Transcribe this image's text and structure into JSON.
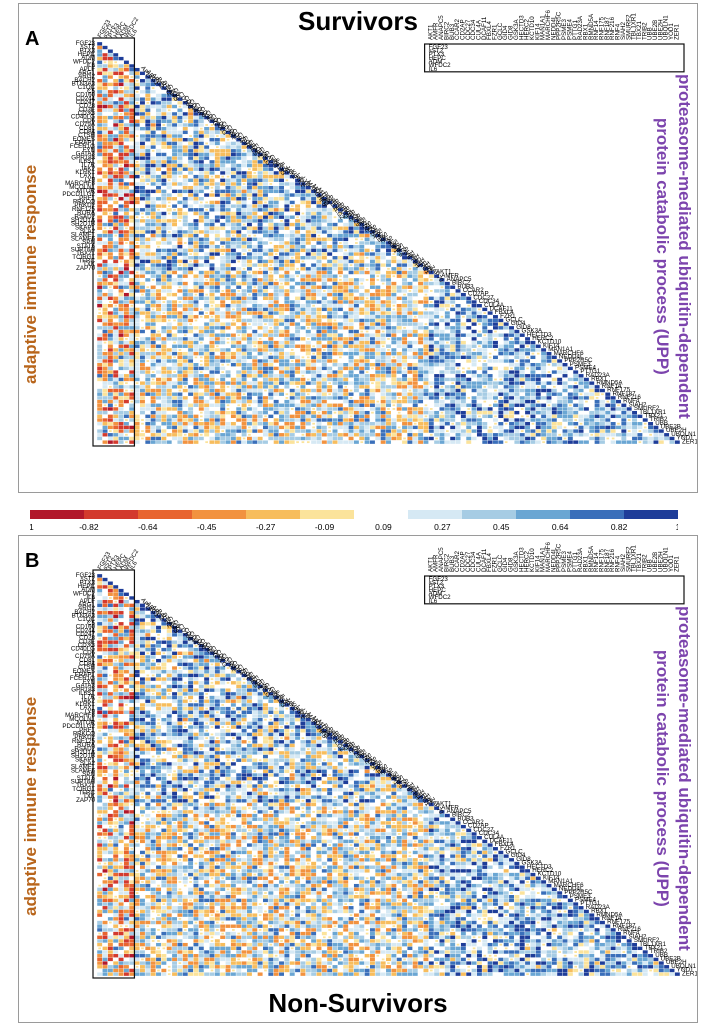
{
  "chart_data": {
    "type": "heatmap",
    "shape": "lower-triangular correlation matrix",
    "colorscale": {
      "min": -1,
      "max": 1,
      "ticks": [
        "-1",
        "-0.82",
        "-0.64",
        "-0.45",
        "-0.27",
        "-0.09",
        "0.09",
        "0.27",
        "0.45",
        "0.64",
        "0.82",
        "1"
      ],
      "colors": [
        "#b2182b",
        "#d33a2e",
        "#e8642f",
        "#f2923f",
        "#f7bd5d",
        "#fbe39b",
        "#ffffff",
        "#d6e9f4",
        "#a6cce4",
        "#6aa6d3",
        "#3a6fba",
        "#1e3d99"
      ]
    },
    "genes": {
      "hormone": [
        "FGF23",
        "sST2",
        "PTX3",
        "HEPC",
        "ADM",
        "WFDC2",
        "IL6"
      ],
      "adaptive_immune_response": [
        "APLF",
        "ARG1",
        "ARG2",
        "BACH2",
        "BTN3A3",
        "C1QC",
        "C5",
        "CD160",
        "CD244",
        "CD247",
        "CD28",
        "CD3E",
        "CD3G",
        "CD40LG",
        "CD6",
        "CD79A",
        "CD81",
        "CD84",
        "CTSH",
        "EOMES",
        "ERAP1",
        "FCER1G",
        "FYN",
        "GATA3",
        "GPR183",
        "IL6ST",
        "IL7R",
        "JAK2",
        "KLRK1",
        "LAX1",
        "LY9",
        "MARCHF8",
        "MCOLN1",
        "MTOR",
        "PDCD1LG2",
        "PRF1",
        "PRKCQ",
        "PRKD2",
        "RNF125",
        "RORA",
        "RSAD2",
        "SH2D1A",
        "SH2D1B",
        "SKAP1",
        "SLA2",
        "SLAMF1",
        "SLAMF6",
        "SPN",
        "STAT6",
        "SUPT6H",
        "TBX21",
        "TCIRG1",
        "TFRC",
        "TXK",
        "ZAP70"
      ],
      "upp": [
        "AKT1",
        "AMFR",
        "ANAPC5",
        "BIRC2",
        "BUB3",
        "CCAR2",
        "CD2AP",
        "CDC27",
        "CDC34",
        "CUL4A",
        "DCAF11",
        "FBXL4",
        "FZR1",
        "GCLC",
        "GID4",
        "GID8",
        "GSK3A",
        "HECTD3",
        "HERC2",
        "KCTD10",
        "KIF14",
        "MAN1A1",
        "MARCHF6",
        "NEDD4L",
        "PPP2R5C",
        "PSME3",
        "PSME4",
        "PTTG1",
        "RAD23A",
        "RBX1",
        "RMND5A",
        "RNF14",
        "RNF175",
        "RNF187",
        "RNF216",
        "RNF4",
        "SIAH2",
        "SMURF2",
        "TBL1XR1",
        "TBX21",
        "TRIB2",
        "UBB",
        "UBE2B",
        "UBE2H",
        "UBQLN1",
        "YOD1",
        "ZER1"
      ]
    },
    "panels": [
      {
        "label": "A",
        "title": "Survivors",
        "seed": 7
      },
      {
        "label": "B",
        "title": "Non-Survivors",
        "seed": 13
      }
    ],
    "left_label": "adaptive immune response",
    "right_label_line1": "proteasome-mediated ubiquitin-dependent",
    "right_label_line2": "protein catabolic process (UPP)"
  }
}
